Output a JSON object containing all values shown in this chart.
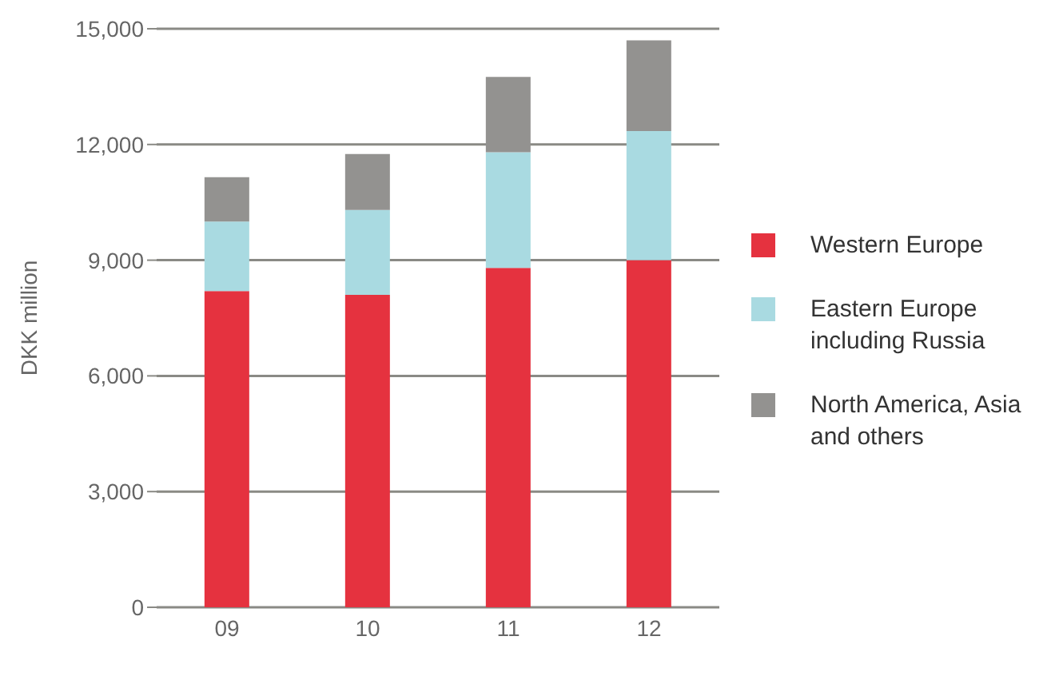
{
  "chart_data": {
    "type": "bar",
    "stacked": true,
    "categories": [
      "09",
      "10",
      "11",
      "12"
    ],
    "ylabel": "DKK million",
    "ylim": [
      0,
      15000
    ],
    "yticks": [
      {
        "value": 0,
        "label": "0"
      },
      {
        "value": 3000,
        "label": "3,000"
      },
      {
        "value": 6000,
        "label": "6,000"
      },
      {
        "value": 9000,
        "label": "9,000"
      },
      {
        "value": 12000,
        "label": "12,000"
      },
      {
        "value": 15000,
        "label": "15,000"
      }
    ],
    "grid": "y",
    "legend": "right",
    "series": [
      {
        "name": "Western Europe",
        "color": "#e5323f",
        "values": [
          8200,
          8100,
          8800,
          9000
        ]
      },
      {
        "name": "Eastern Europe including Russia",
        "color": "#a9dae1",
        "values": [
          1800,
          2200,
          3000,
          3350
        ]
      },
      {
        "name": "North America, Asia and others",
        "color": "#939290",
        "values": [
          1150,
          1450,
          1950,
          2350
        ]
      }
    ]
  }
}
